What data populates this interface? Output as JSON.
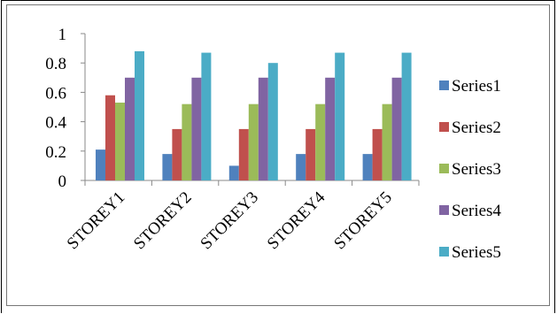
{
  "chart_data": {
    "type": "bar",
    "categories": [
      "STOREY1",
      "STOREY2",
      "STOREY3",
      "STOREY4",
      "STOREY5"
    ],
    "series": [
      {
        "name": "Series1",
        "color": "#4F81BD",
        "values": [
          0.21,
          0.18,
          0.1,
          0.18,
          0.18
        ]
      },
      {
        "name": "Series2",
        "color": "#C0504D",
        "values": [
          0.58,
          0.35,
          0.35,
          0.35,
          0.35
        ]
      },
      {
        "name": "Series3",
        "color": "#9BBB59",
        "values": [
          0.53,
          0.52,
          0.52,
          0.52,
          0.52
        ]
      },
      {
        "name": "Series4",
        "color": "#8064A2",
        "values": [
          0.7,
          0.7,
          0.7,
          0.7,
          0.7
        ]
      },
      {
        "name": "Series5",
        "color": "#4BACC6",
        "values": [
          0.88,
          0.87,
          0.8,
          0.87,
          0.87
        ]
      }
    ],
    "yticks": [
      "0",
      "0.2",
      "0.4",
      "0.6",
      "0.8",
      "1"
    ],
    "ylim": [
      0,
      1
    ],
    "grid": false,
    "legend_position": "right",
    "title": "",
    "xlabel": "",
    "ylabel": ""
  }
}
